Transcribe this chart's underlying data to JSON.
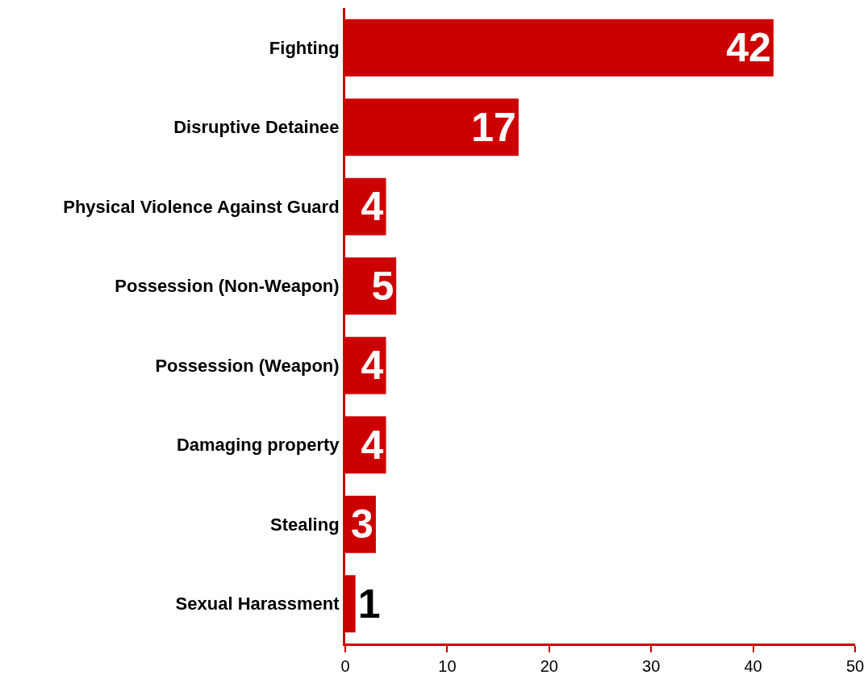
{
  "chart_data": {
    "type": "bar",
    "orientation": "horizontal",
    "categories": [
      "Fighting",
      "Disruptive Detainee",
      "Physical Violence Against Guard",
      "Possession (Non-Weapon)",
      "Possession (Weapon)",
      "Damaging property",
      "Stealing",
      "Sexual Harassment"
    ],
    "values": [
      42,
      17,
      4,
      5,
      4,
      4,
      3,
      1
    ],
    "color": "#cc0000",
    "xlim": [
      0,
      50
    ],
    "xticks": [
      0,
      10,
      20,
      30,
      40,
      50
    ],
    "grid": false,
    "legend": false,
    "data_labels": true
  }
}
